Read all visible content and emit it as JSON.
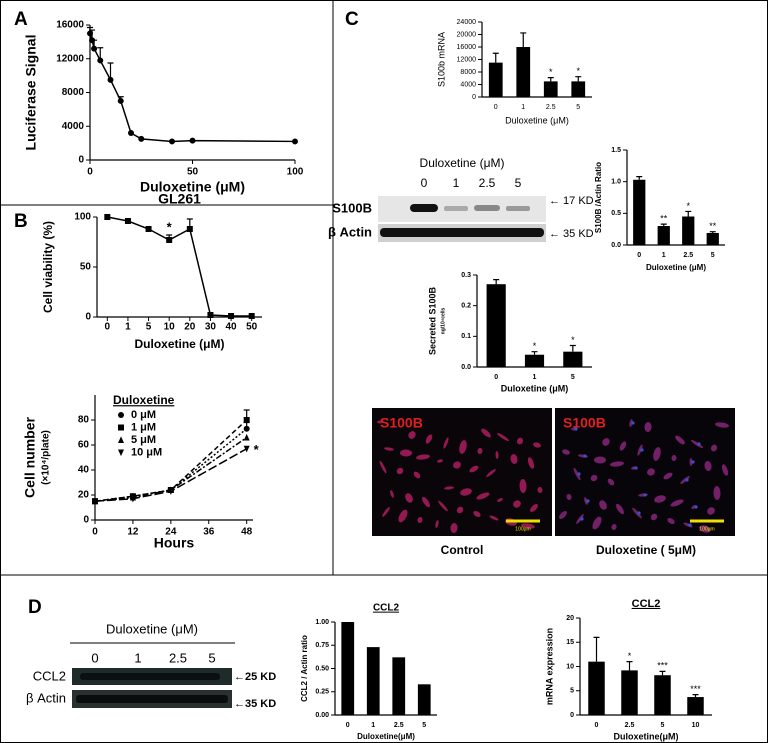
{
  "panel_labels": [
    "A",
    "B",
    "C",
    "D"
  ],
  "chart_data": [
    {
      "type": "line",
      "xlabel": "Duloxetine (μM)",
      "ylabel": "Luciferase Signal",
      "x": [
        0,
        1,
        2,
        5,
        10,
        15,
        20,
        25,
        40,
        50,
        100
      ],
      "values": [
        15000,
        14200,
        13200,
        11800,
        9500,
        7000,
        3200,
        2500,
        2200,
        2300,
        2200
      ],
      "errors": [
        700,
        1200,
        1000,
        1500,
        2000,
        500,
        null,
        null,
        null,
        null,
        null
      ],
      "color": "#000000",
      "marker": "circle",
      "xlim": [
        0,
        100
      ],
      "xticks": [
        0,
        50,
        100
      ],
      "ylim": [
        0,
        16000
      ],
      "yticks": [
        0,
        4000,
        8000,
        12000,
        16000
      ],
      "grid": false
    },
    {
      "type": "line",
      "title": "GL261",
      "xlabel": "Duloxetine (μM)",
      "ylabel": "Cell viability (%)",
      "categories": [
        "0",
        "1",
        "5",
        "10",
        "20",
        "30",
        "40",
        "50"
      ],
      "values": [
        100,
        96,
        88,
        77,
        88,
        2,
        1,
        1
      ],
      "errors": [
        null,
        null,
        null,
        5,
        10,
        null,
        null,
        null
      ],
      "significance": [
        null,
        null,
        null,
        "*",
        null,
        null,
        null,
        null
      ],
      "color": "#000000",
      "marker": "square",
      "ylim": [
        0,
        100
      ],
      "yticks": [
        0,
        50,
        100
      ],
      "grid": false
    },
    {
      "type": "line",
      "xlabel": "Hours",
      "ylabel": "Cell number",
      "ylabel_unit": "(×10⁴/plate)",
      "legend_title": "Duloxetine",
      "legend": "upper-left",
      "x": [
        0,
        12,
        24,
        48
      ],
      "series": [
        {
          "name": "0 μM",
          "color": "#000000",
          "marker": "circle",
          "dash": "dotted",
          "values": [
            15,
            19,
            24,
            73
          ],
          "errors": [
            null,
            null,
            null,
            5
          ]
        },
        {
          "name": "1 μM",
          "color": "#000000",
          "marker": "square",
          "dash": "dashed",
          "values": [
            15,
            19,
            24,
            80
          ],
          "errors": [
            null,
            null,
            null,
            8
          ]
        },
        {
          "name": "5 μM",
          "color": "#000000",
          "marker": "triangle",
          "dash": "dashdot",
          "values": [
            15,
            18,
            24,
            66
          ]
        },
        {
          "name": "10 μM",
          "color": "#000000",
          "marker": "triangle-down",
          "dash": "longdash",
          "values": [
            15,
            17,
            23,
            57
          ],
          "significance": [
            null,
            null,
            null,
            "*"
          ]
        }
      ],
      "xlim": [
        0,
        50
      ],
      "xticks": [
        0,
        12,
        24,
        36,
        48
      ],
      "ylim": [
        0,
        100
      ],
      "yticks": [
        0,
        20,
        40,
        60,
        80
      ],
      "grid": false
    },
    {
      "type": "bar",
      "xlabel": "Duloxetine (μM)",
      "ylabel": "S100b mRNA",
      "categories": [
        "0",
        "1",
        "2.5",
        "5"
      ],
      "values": [
        11000,
        16000,
        5000,
        5000
      ],
      "errors": [
        3000,
        4500,
        1200,
        1500
      ],
      "significance": [
        null,
        null,
        "*",
        "*"
      ],
      "color": "#000000",
      "ylim": [
        0,
        24000
      ],
      "yticks": [
        0,
        4000,
        8000,
        12000,
        16000,
        20000,
        24000
      ],
      "grid": false
    },
    {
      "type": "bar",
      "xlabel": "Duloxetine (μM)",
      "ylabel": "S100B /Actin Ratio",
      "categories": [
        "0",
        "1",
        "2.5",
        "5"
      ],
      "values": [
        1.03,
        0.3,
        0.45,
        0.19
      ],
      "errors": [
        0.05,
        0.03,
        0.08,
        0.02
      ],
      "significance": [
        null,
        "**",
        "*",
        "**"
      ],
      "color": "#000000",
      "ylim": [
        0,
        1.5
      ],
      "yticks": [
        {
          "value": 0,
          "label": "0.0"
        },
        {
          "value": 0.5,
          "label": "0.5"
        },
        {
          "value": 1,
          "label": "1.0"
        },
        {
          "value": 1.5,
          "label": "1.5"
        }
      ],
      "grid": false
    },
    {
      "type": "bar",
      "xlabel": "Duloxetine (μM)",
      "ylabel": "Secreted S100B",
      "ylabel_unit": "ng/10⁴cells",
      "categories": [
        "0",
        "1",
        "5"
      ],
      "values": [
        0.27,
        0.04,
        0.05
      ],
      "errors": [
        0.015,
        0.01,
        0.02
      ],
      "significance": [
        null,
        "*",
        "*"
      ],
      "color": "#000000",
      "ylim": [
        0,
        0.3
      ],
      "yticks": [
        {
          "value": 0,
          "label": "0.0"
        },
        {
          "value": 0.1,
          "label": "0.1"
        },
        {
          "value": 0.2,
          "label": "0.2"
        },
        0.3
      ],
      "grid": false
    },
    {
      "type": "bar",
      "title": "CCL2",
      "xlabel": "Duloxetine(μM)",
      "ylabel": "CCL2 / Actin ratio",
      "categories": [
        "0",
        "1",
        "2.5",
        "5"
      ],
      "values": [
        1.0,
        0.73,
        0.62,
        0.33
      ],
      "color": "#000000",
      "ylim": [
        0,
        1.0
      ],
      "yticks": [
        {
          "value": 0,
          "label": "0.00"
        },
        {
          "value": 0.25,
          "label": "0.25"
        },
        {
          "value": 0.5,
          "label": "0.50"
        },
        {
          "value": 0.75,
          "label": "0.75"
        },
        {
          "value": 1,
          "label": "1.00"
        }
      ],
      "grid": false
    },
    {
      "type": "bar",
      "title": "CCL2",
      "xlabel": "Duloxetine(μM)",
      "ylabel": "mRNA expression",
      "categories": [
        "0",
        "2.5",
        "5",
        "10"
      ],
      "values": [
        11,
        9.2,
        8.2,
        3.7
      ],
      "errors": [
        5,
        1.8,
        0.8,
        0.5
      ],
      "significance": [
        null,
        "*",
        "***",
        "***"
      ],
      "color": "#000000",
      "ylim": [
        0,
        20
      ],
      "yticks": [
        0,
        5,
        10,
        15,
        20
      ],
      "grid": false
    }
  ],
  "blots": [
    {
      "treatment_label": "Duloxetine (μM)",
      "lanes": [
        "0",
        "1",
        "2.5",
        "5"
      ],
      "rows": [
        "S100B",
        "β Actin"
      ],
      "sizes": [
        "← 17 KD",
        "← 35 KD"
      ]
    },
    {
      "treatment_label": "Duloxetine (μM)",
      "lanes": [
        "0",
        "1",
        "2.5",
        "5"
      ],
      "rows": [
        "CCL2",
        "β Actin"
      ],
      "sizes": [
        "←25 KD",
        "←35 KD"
      ]
    }
  ],
  "micrographs": [
    {
      "stain": "S100B",
      "scale": "100μm",
      "caption": "Control"
    },
    {
      "stain": "S100B",
      "scale": "100μm",
      "caption": "Duloxetine ( 5μM)"
    }
  ]
}
